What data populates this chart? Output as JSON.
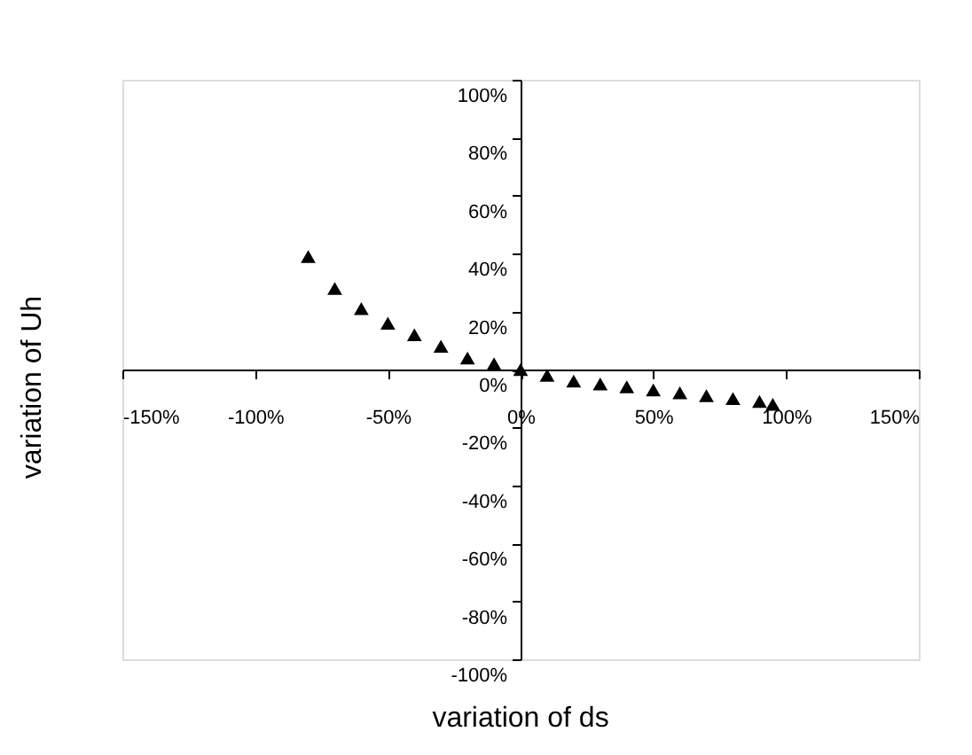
{
  "chart_data": {
    "type": "scatter",
    "xlabel": "variation of ds",
    "ylabel": "variation of Uh",
    "x": [
      -80,
      -70,
      -60,
      -50,
      -40,
      -30,
      -20,
      -10,
      0,
      10,
      20,
      30,
      40,
      50,
      60,
      70,
      80,
      90,
      95
    ],
    "series": [
      {
        "color": "#000000",
        "values": [
          39,
          28,
          21,
          16,
          12,
          8,
          4,
          2,
          0,
          -2,
          -4,
          -5,
          -6,
          -7,
          -8,
          -9,
          -10,
          -11,
          -12
        ]
      }
    ],
    "marker": "triangle",
    "grid": false,
    "xlim": [
      -150,
      150
    ],
    "ylim": [
      -100,
      100
    ],
    "xticks": [
      {
        "value": -150,
        "label": "-150%"
      },
      {
        "value": -100,
        "label": "-100%"
      },
      {
        "value": -50,
        "label": "-50%"
      },
      {
        "value": 0,
        "label": "0%"
      },
      {
        "value": 50,
        "label": "50%"
      },
      {
        "value": 100,
        "label": "100%"
      },
      {
        "value": 150,
        "label": "150%"
      }
    ],
    "yticks": [
      {
        "value": -100,
        "label": "-100%"
      },
      {
        "value": -80,
        "label": "-80%"
      },
      {
        "value": -60,
        "label": "-60%"
      },
      {
        "value": -40,
        "label": "-40%"
      },
      {
        "value": -20,
        "label": "-20%"
      },
      {
        "value": 0,
        "label": "0%"
      },
      {
        "value": 20,
        "label": "20%"
      },
      {
        "value": 40,
        "label": "40%"
      },
      {
        "value": 60,
        "label": "60%"
      },
      {
        "value": 80,
        "label": "80%"
      },
      {
        "value": 100,
        "label": "100%"
      }
    ]
  }
}
